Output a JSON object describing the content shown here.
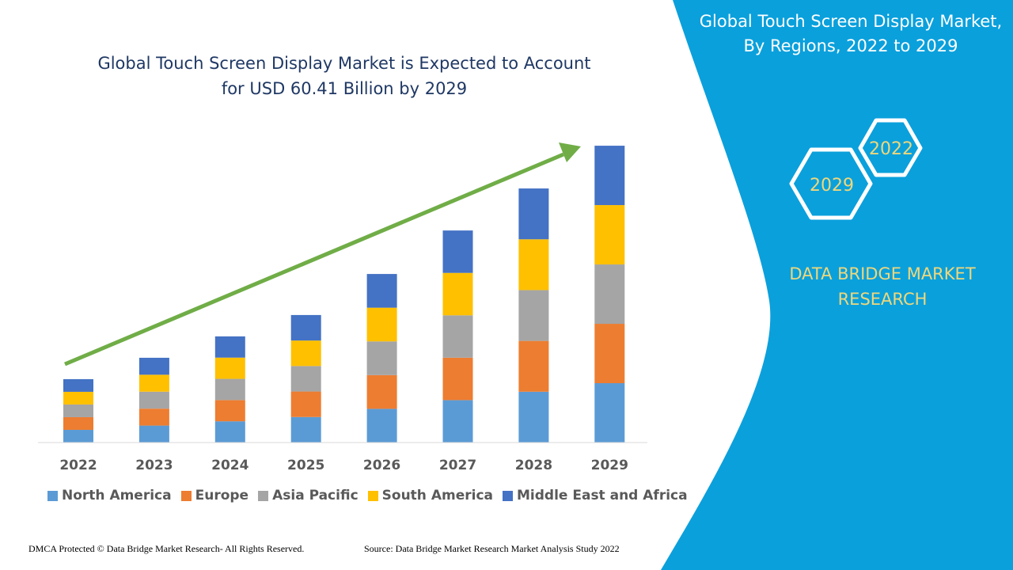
{
  "header": {
    "title": "Global Touch Screen Display Market is Expected to Account for USD 60.41 Billion by 2029"
  },
  "side_panel": {
    "title": "Global Touch Screen Display Market, By Regions, 2022 to 2029",
    "hex_start": "2022",
    "hex_end": "2029",
    "brand": "DATA BRIDGE MARKET RESEARCH",
    "panel_color": "#0aa0dc",
    "brand_color": "#f0d77a"
  },
  "footer": {
    "left": "DMCA Protected © Data Bridge Market Research- All Rights Reserved.",
    "right": "Source: Data Bridge Market Research Market Analysis Study 2022"
  },
  "chart_data": {
    "type": "bar",
    "stacked": true,
    "title": "",
    "xlabel": "",
    "ylabel": "",
    "y_axis_shown": false,
    "grid": false,
    "legend_placement": "bottom",
    "trend_arrow": true,
    "trend_arrow_color": "#70ad47",
    "categories": [
      "2022",
      "2023",
      "2024",
      "2025",
      "2026",
      "2027",
      "2028",
      "2029"
    ],
    "ylim": [
      0,
      60.41
    ],
    "series": [
      {
        "name": "North America",
        "color": "#5b9bd5",
        "values": [
          2.58,
          3.45,
          4.32,
          5.19,
          6.86,
          8.63,
          10.34,
          12.08
        ]
      },
      {
        "name": "Europe",
        "color": "#ed7d31",
        "values": [
          2.58,
          3.45,
          4.32,
          5.19,
          6.86,
          8.63,
          10.34,
          12.08
        ]
      },
      {
        "name": "Asia Pacific",
        "color": "#a5a5a5",
        "values": [
          2.58,
          3.45,
          4.32,
          5.19,
          6.86,
          8.63,
          10.34,
          12.08
        ]
      },
      {
        "name": "South America",
        "color": "#ffc000",
        "values": [
          2.58,
          3.45,
          4.32,
          5.19,
          6.86,
          8.63,
          10.34,
          12.08
        ]
      },
      {
        "name": "Middle East and Africa",
        "color": "#4472c4",
        "values": [
          2.58,
          3.45,
          4.32,
          5.19,
          6.86,
          8.63,
          10.34,
          12.08
        ]
      }
    ]
  }
}
